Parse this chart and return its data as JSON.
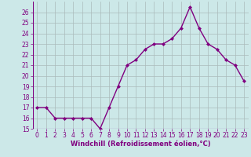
{
  "x": [
    0,
    1,
    2,
    3,
    4,
    5,
    6,
    7,
    8,
    9,
    10,
    11,
    12,
    13,
    14,
    15,
    16,
    17,
    18,
    19,
    20,
    21,
    22,
    23
  ],
  "y": [
    17,
    17,
    16,
    16,
    16,
    16,
    16,
    15,
    17,
    19,
    21,
    21.5,
    22.5,
    23,
    23,
    23.5,
    24.5,
    26.5,
    24.5,
    23,
    22.5,
    21.5,
    21,
    19.5
  ],
  "line_color": "#800080",
  "marker": "D",
  "marker_size": 2,
  "bg_color": "#cce8e8",
  "grid_color": "#aabbbb",
  "xlabel": "Windchill (Refroidissement éolien,°C)",
  "xlabel_color": "#800080",
  "tick_color": "#800080",
  "ylim": [
    15,
    27
  ],
  "xlim": [
    -0.5,
    23.5
  ],
  "yticks": [
    15,
    16,
    17,
    18,
    19,
    20,
    21,
    22,
    23,
    24,
    25,
    26
  ],
  "xticks": [
    0,
    1,
    2,
    3,
    4,
    5,
    6,
    7,
    8,
    9,
    10,
    11,
    12,
    13,
    14,
    15,
    16,
    17,
    18,
    19,
    20,
    21,
    22,
    23
  ],
  "line_width": 1.0,
  "tick_fontsize": 5.5,
  "xlabel_fontsize": 6.0
}
